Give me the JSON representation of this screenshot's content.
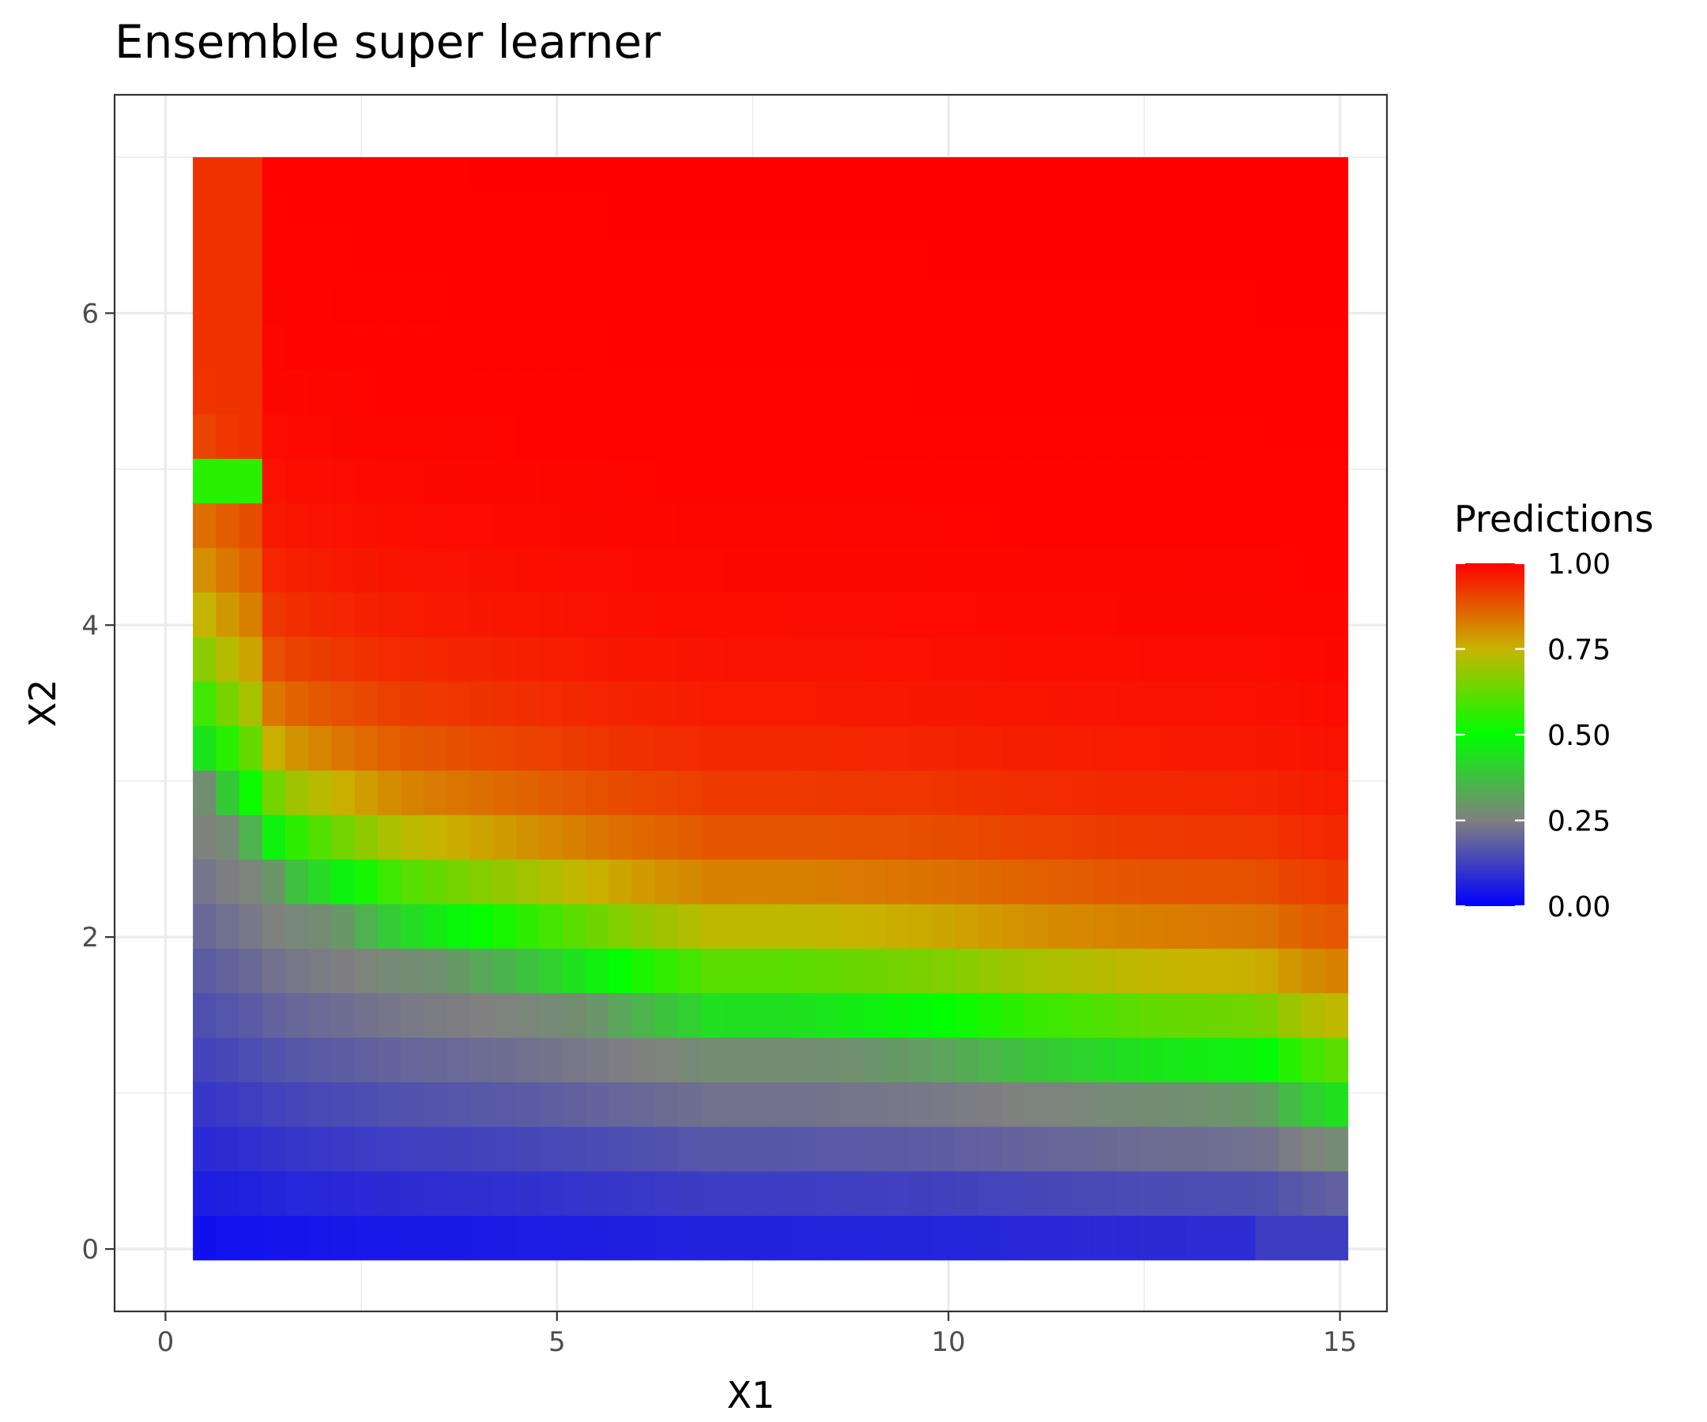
{
  "chart_data": {
    "type": "heatmap",
    "title": "Ensemble super learner",
    "xlabel": "X1",
    "ylabel": "X2",
    "xlim": [
      -0.65,
      15.6
    ],
    "ylim": [
      -0.4,
      7.4
    ],
    "x_ticks": [
      0,
      5,
      10,
      15
    ],
    "y_ticks": [
      0,
      2,
      4,
      6
    ],
    "x_tick_labels": [
      "0",
      "5",
      "10",
      "15"
    ],
    "y_tick_labels": [
      "0",
      "2",
      "4",
      "6"
    ],
    "grid": true,
    "x_range": [
      0.35,
      15.1
    ],
    "y_range": [
      -0.07,
      7.0
    ],
    "x_cell_width": 0.295,
    "y_cell_height": 0.2855,
    "legend": {
      "title": "Predictions",
      "position": "right",
      "ticks": [
        0,
        0.25,
        0.5,
        0.75,
        1
      ],
      "tick_labels": [
        "0.00",
        "0.25",
        "0.50",
        "0.75",
        "1.00"
      ]
    },
    "colors": {
      "low": "#0000ff",
      "mid_low": "#808080",
      "mid": "#00ff00",
      "mid_high": "#c8b400",
      "high": "#ff0000",
      "panel_border": "#333333",
      "grid": "#ebebeb"
    },
    "boundary_x": [
      0.35,
      1.5,
      3,
      4.5,
      6,
      7,
      8,
      9,
      10,
      11,
      12.5,
      14,
      14.5,
      15.1
    ],
    "boundary_y": [
      3.4,
      2.6,
      2.2,
      2.0,
      1.75,
      1.6,
      1.6,
      1.55,
      1.5,
      1.4,
      1.3,
      1.25,
      1.1,
      1.0
    ],
    "upper_left_region": {
      "x_max": 1.3,
      "y_min": 4.9,
      "y_max": 5.1,
      "value": 0.55
    }
  }
}
